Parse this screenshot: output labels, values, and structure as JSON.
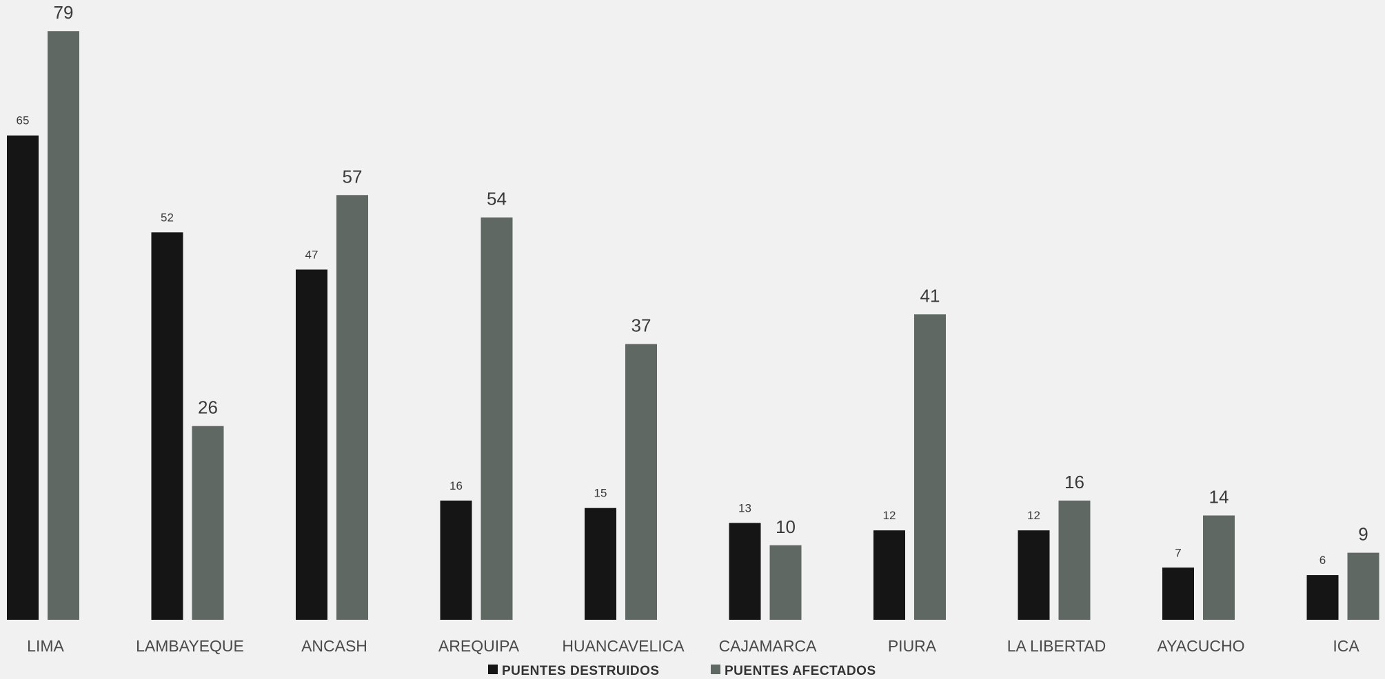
{
  "chart_data": {
    "type": "bar",
    "title": "",
    "xlabel": "",
    "ylabel": "",
    "ylim": [
      0,
      80
    ],
    "grid": false,
    "legend_position": "bottom",
    "categories": [
      "LIMA",
      "LAMBAYEQUE",
      "ANCASH",
      "AREQUIPA",
      "HUANCAVELICA",
      "CAJAMARCA",
      "PIURA",
      "LA LIBERTAD",
      "AYACUCHO",
      "ICA"
    ],
    "series": [
      {
        "name": "PUENTES DESTRUIDOS",
        "color": "#151515",
        "values": [
          65,
          52,
          47,
          16,
          15,
          13,
          12,
          12,
          7,
          6
        ]
      },
      {
        "name": "PUENTES AFECTADOS",
        "color": "#5f6862",
        "values": [
          79,
          26,
          57,
          54,
          37,
          10,
          41,
          16,
          14,
          9
        ]
      }
    ]
  }
}
